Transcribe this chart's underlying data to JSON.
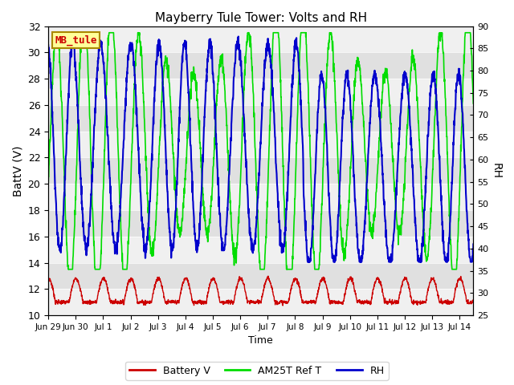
{
  "title": "Mayberry Tule Tower: Volts and RH",
  "xlabel": "Time",
  "ylabel_left": "BattV (V)",
  "ylabel_right": "RH",
  "station_label": "MB_tule",
  "ylim_left": [
    10,
    32
  ],
  "ylim_right": [
    25,
    90
  ],
  "yticks_left": [
    10,
    12,
    14,
    16,
    18,
    20,
    22,
    24,
    26,
    28,
    30,
    32
  ],
  "yticks_right": [
    25,
    30,
    35,
    40,
    45,
    50,
    55,
    60,
    65,
    70,
    75,
    80,
    85,
    90
  ],
  "color_battery": "#cc0000",
  "color_am25t": "#00dd00",
  "color_rh": "#0000cc",
  "bg_light": "#f0f0f0",
  "bg_dark": "#e0e0e0",
  "legend_labels": [
    "Battery V",
    "AM25T Ref T",
    "RH"
  ],
  "tick_labels": [
    "Jun 29",
    "Jun 30",
    "Jul 1",
    "Jul 2",
    "Jul 3",
    "Jul 4",
    "Jul 5",
    "Jul 6",
    "Jul 7",
    "Jul 8",
    "Jul 9",
    "Jul 10",
    "Jul 11",
    "Jul 12",
    "Jul 13",
    "Jul 14"
  ],
  "xlim": [
    0,
    15.5
  ],
  "n_points": 2000
}
